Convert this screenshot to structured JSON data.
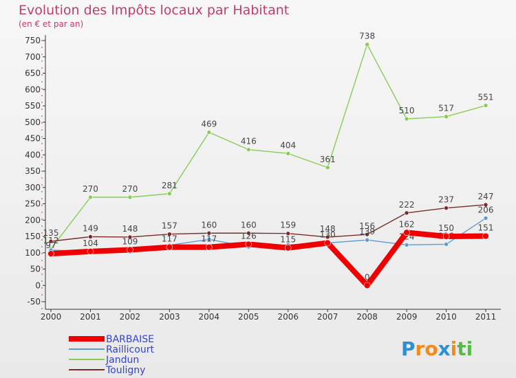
{
  "chart_data": {
    "type": "line",
    "title": "Evolution des Impôts locaux par Habitant",
    "subtitle": "(en € et par an)",
    "categories": [
      "2000",
      "2001",
      "2002",
      "2003",
      "2004",
      "2005",
      "2006",
      "2007",
      "2008",
      "2009",
      "2010",
      "2011"
    ],
    "ylim": [
      -50,
      750
    ],
    "yticks": [
      -50,
      0,
      50,
      100,
      150,
      200,
      250,
      300,
      350,
      400,
      450,
      500,
      550,
      600,
      650,
      700,
      750
    ],
    "grid": false,
    "legend_position": "bottom-left",
    "series": [
      {
        "name": "Jandun",
        "color": "#88cc55",
        "width": 1.4,
        "values": [
          112,
          270,
          270,
          281,
          469,
          416,
          404,
          361,
          738,
          510,
          517,
          551
        ],
        "labels": [
          "112",
          "270",
          "270",
          "281",
          "469",
          "416",
          "404",
          "361",
          "738",
          "510",
          "517",
          "551"
        ]
      },
      {
        "name": "Touligny",
        "color": "#7a2a2a",
        "width": 1.4,
        "values": [
          135,
          149,
          148,
          157,
          160,
          160,
          159,
          148,
          156,
          222,
          237,
          247
        ],
        "labels": [
          "135",
          "149",
          "148",
          "157",
          "160",
          "160",
          "159",
          "148",
          "156",
          "222",
          "237",
          "247"
        ]
      },
      {
        "name": "Raillicourt",
        "color": "#5b9bd5",
        "width": 1.4,
        "values": [
          108,
          104,
          103,
          123,
          141,
          118,
          124,
          130,
          139,
          124,
          126,
          206
        ],
        "labels": [
          "",
          "",
          "",
          "",
          "",
          "",
          "",
          "",
          "139",
          "124",
          "126",
          "206"
        ]
      },
      {
        "name": "BARBAISE",
        "color": "#ee0000",
        "width": 8,
        "values": [
          97,
          104,
          109,
          117,
          117,
          126,
          115,
          130,
          0,
          162,
          150,
          151
        ],
        "labels": [
          "97",
          "104",
          "109",
          "117",
          "117",
          "126",
          "115",
          "130",
          "0",
          "162",
          "150",
          "151"
        ]
      }
    ]
  },
  "legend": {
    "items": [
      "BARBAISE",
      "Raillicourt",
      "Jandun",
      "Touligny"
    ],
    "colors": [
      "#ee0000",
      "#5b9bd5",
      "#88cc55",
      "#7a2a2a"
    ]
  },
  "brand": {
    "text": "Proxiti",
    "letters": [
      "P",
      "r",
      "o",
      "x",
      "i",
      "t",
      "i"
    ],
    "colors": [
      "#2f8fd0",
      "#f08a1c",
      "#f08a1c",
      "#2f8fd0",
      "#f08a1c",
      "#5bb84a",
      "#5bb84a"
    ]
  }
}
